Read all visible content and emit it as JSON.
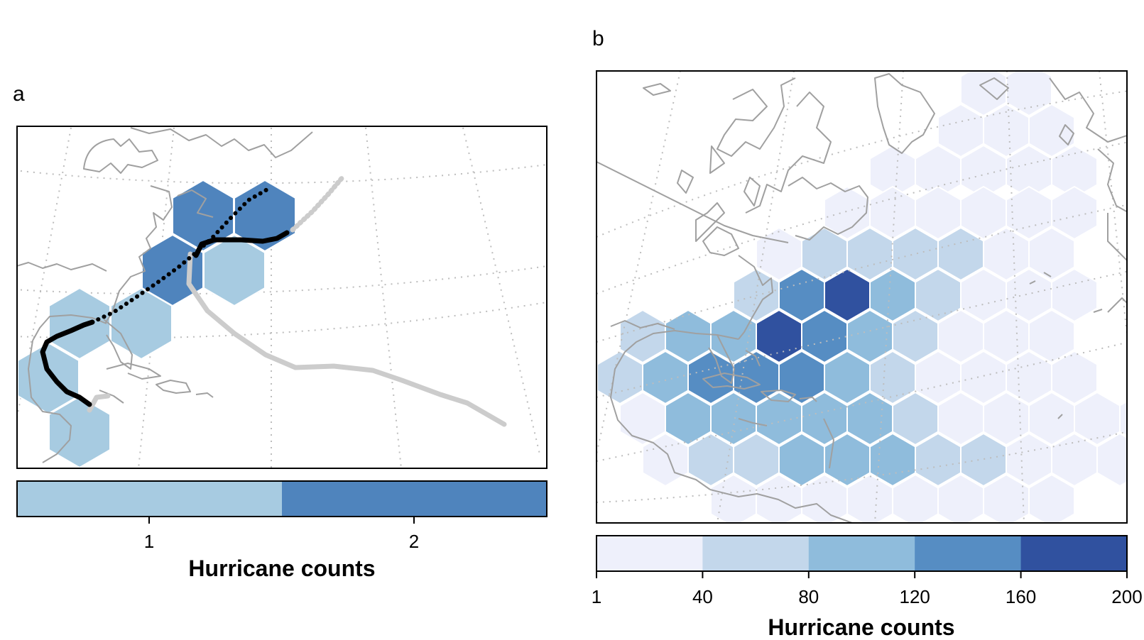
{
  "panel_a": {
    "label": "a",
    "legend": {
      "title": "Hurricane counts",
      "ticks": [
        "1",
        "2"
      ],
      "colors": [
        "#a7cbe1",
        "#4f84bd"
      ]
    },
    "hex_counts": [
      2,
      2,
      2,
      1,
      1,
      1,
      1,
      1
    ],
    "tracks": [
      {
        "color": "#000000",
        "style": "dotted"
      },
      {
        "color": "#000000",
        "style": "solid"
      },
      {
        "color": "#cccccc",
        "style": "solid"
      }
    ]
  },
  "panel_b": {
    "label": "b",
    "legend": {
      "title": "Hurricane counts",
      "ticks": [
        "1",
        "40",
        "80",
        "120",
        "160",
        "200"
      ],
      "colors": [
        "#eef0fb",
        "#c3d7eb",
        "#8fbcdc",
        "#568dc3",
        "#30519f"
      ]
    },
    "hex_count_bins": [
      1,
      2,
      3,
      4,
      5
    ]
  },
  "colors": {
    "land_outline": "#a0a0a0",
    "graticule": "#bdbdbd",
    "hex_edge": "#ffffff"
  }
}
